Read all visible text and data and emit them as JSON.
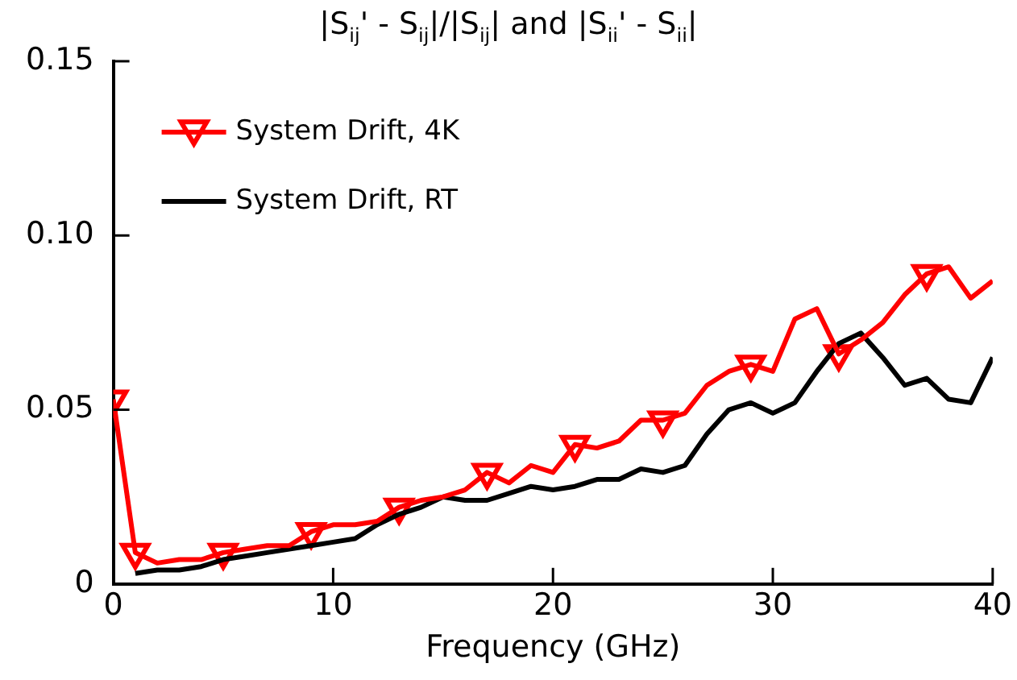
{
  "chart_data": {
    "type": "line",
    "title": "|S$_{ij}$' - S$_{ij}$|/|S$_{ij}$| and |S$_{ii}$' - S$_{ii}$|",
    "xlabel": "Frequency (GHz)",
    "x": [
      0,
      1,
      2,
      3,
      4,
      5,
      6,
      7,
      8,
      9,
      10,
      11,
      12,
      13,
      14,
      15,
      16,
      17,
      18,
      19,
      20,
      21,
      22,
      23,
      24,
      25,
      26,
      27,
      28,
      29,
      30,
      31,
      32,
      33,
      34,
      35,
      36,
      37,
      38,
      39,
      40
    ],
    "series": [
      {
        "name": "System Drift, 4K",
        "color": "#ff0000",
        "marker": "none",
        "values": [
          0.053,
          0.009,
          0.006,
          0.007,
          0.007,
          0.009,
          0.01,
          0.011,
          0.011,
          0.015,
          0.017,
          0.017,
          0.018,
          0.022,
          0.024,
          0.025,
          0.027,
          0.032,
          0.029,
          0.034,
          0.032,
          0.04,
          0.039,
          0.041,
          0.047,
          0.047,
          0.049,
          0.057,
          0.061,
          0.063,
          0.061,
          0.076,
          0.079,
          0.066,
          0.07,
          0.075,
          0.083,
          0.089,
          0.091,
          0.082,
          0.087
        ]
      },
      {
        "name": "System Drift, RT",
        "color": "#000000",
        "marker": "none",
        "values": [
          null,
          0.003,
          0.004,
          0.004,
          0.005,
          0.007,
          0.008,
          0.009,
          0.01,
          0.011,
          0.012,
          0.013,
          0.017,
          0.02,
          0.022,
          0.025,
          0.024,
          0.024,
          0.026,
          0.028,
          0.027,
          0.028,
          0.03,
          0.03,
          0.033,
          0.032,
          0.034,
          0.043,
          0.05,
          0.052,
          0.049,
          0.052,
          0.061,
          0.069,
          0.072,
          0.065,
          0.057,
          0.059,
          0.053,
          0.052,
          0.065
        ]
      },
      {
        "type": "scatter",
        "color": "#ff0000",
        "marker": "triangle",
        "x": [
          0,
          1,
          5,
          9,
          13,
          17,
          21,
          25,
          29,
          33,
          37
        ],
        "values": [
          0.053,
          0.009,
          0.009,
          0.015,
          0.022,
          0.032,
          0.04,
          0.047,
          0.063,
          0.066,
          0.089
        ]
      }
    ],
    "xlim": [
      0,
      40
    ],
    "xticks": [
      0,
      10,
      20,
      30,
      40
    ],
    "ylim": [
      0,
      0.15
    ],
    "yticks": [
      0,
      0.05,
      {
        "value": 0.1,
        "label": "0.10"
      },
      0.15
    ],
    "grid": false,
    "legend": "top left",
    "line_style": "solid"
  }
}
